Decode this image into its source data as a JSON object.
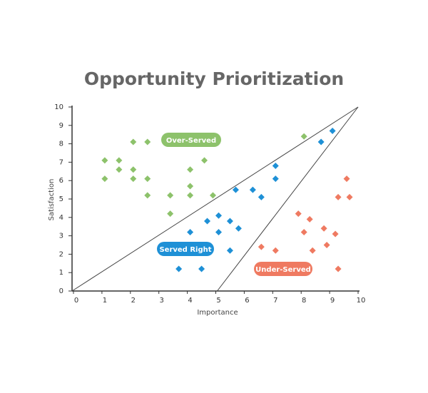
{
  "chart_data": {
    "type": "scatter",
    "title": "Opportunity Prioritization",
    "x_label": "Importance",
    "y_label": "Satisfaction",
    "xlim": [
      0,
      10
    ],
    "ylim": [
      0,
      10
    ],
    "xticks": [
      0,
      1,
      2,
      3,
      4,
      5,
      6,
      7,
      8,
      9,
      10
    ],
    "yticks": [
      0,
      1,
      2,
      3,
      4,
      5,
      6,
      7,
      8,
      9,
      10
    ],
    "series": [
      {
        "name": "Over-Served",
        "color": "#8dc26b",
        "x": [
          1.1,
          1.6,
          1.1,
          1.6,
          2.1,
          2.6,
          2.1,
          2.1,
          2.6,
          2.6,
          3.4,
          3.4,
          4.1,
          4.1,
          4.1,
          4.6,
          4.9,
          8.1
        ],
        "values": [
          7.1,
          7.1,
          6.1,
          6.6,
          8.1,
          8.1,
          6.6,
          6.1,
          6.1,
          5.2,
          5.2,
          4.2,
          6.6,
          5.7,
          5.2,
          7.1,
          5.2,
          8.4
        ]
      },
      {
        "name": "Served Right",
        "color": "#1e90d6",
        "x": [
          9.1,
          8.7,
          7.1,
          7.1,
          6.3,
          6.6,
          5.7,
          5.1,
          4.7,
          5.5,
          5.8,
          5.1,
          4.1,
          5.5,
          3.7,
          4.5
        ],
        "values": [
          8.7,
          8.1,
          6.8,
          6.1,
          5.5,
          5.1,
          5.5,
          4.1,
          3.8,
          3.8,
          3.4,
          3.2,
          3.2,
          2.2,
          1.2,
          1.2
        ]
      },
      {
        "name": "Under-Served",
        "color": "#ef7a61",
        "x": [
          9.6,
          9.3,
          9.7,
          7.9,
          8.3,
          8.8,
          8.1,
          9.2,
          8.9,
          8.4,
          6.6,
          7.1,
          9.3
        ],
        "values": [
          6.1,
          5.1,
          5.1,
          4.2,
          3.9,
          3.4,
          3.2,
          3.1,
          2.5,
          2.2,
          2.4,
          2.2,
          1.2
        ]
      }
    ]
  }
}
